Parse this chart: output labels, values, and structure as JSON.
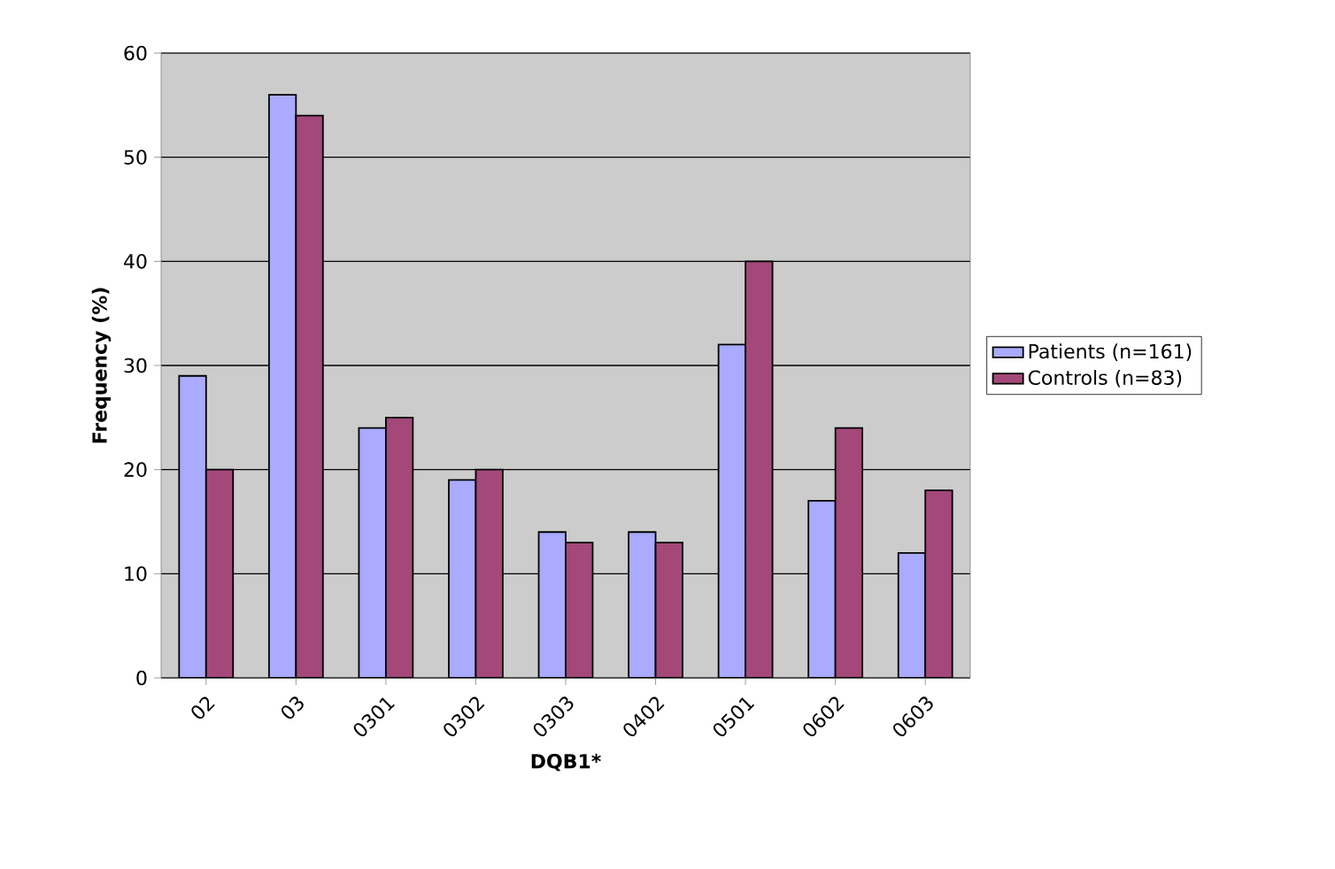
{
  "chart_data": {
    "type": "bar",
    "xlabel": "DQB1*",
    "ylabel": "Frequency (%)",
    "categories": [
      "02",
      "03",
      "0301",
      "0302",
      "0303",
      "0402",
      "0501",
      "0602",
      "0603"
    ],
    "series": [
      {
        "name": "Patients (n=161)",
        "color": "#aaaaff",
        "values": [
          29,
          56,
          24,
          19,
          14,
          14,
          32,
          17,
          12
        ]
      },
      {
        "name": "Controls (n=83)",
        "color": "#a4487a",
        "values": [
          20,
          54,
          25,
          20,
          13,
          13,
          40,
          24,
          18
        ]
      }
    ],
    "ylim": [
      0,
      60
    ],
    "yticks": [
      0,
      10,
      20,
      30,
      40,
      50,
      60
    ],
    "grid": "y",
    "legend": "right"
  }
}
